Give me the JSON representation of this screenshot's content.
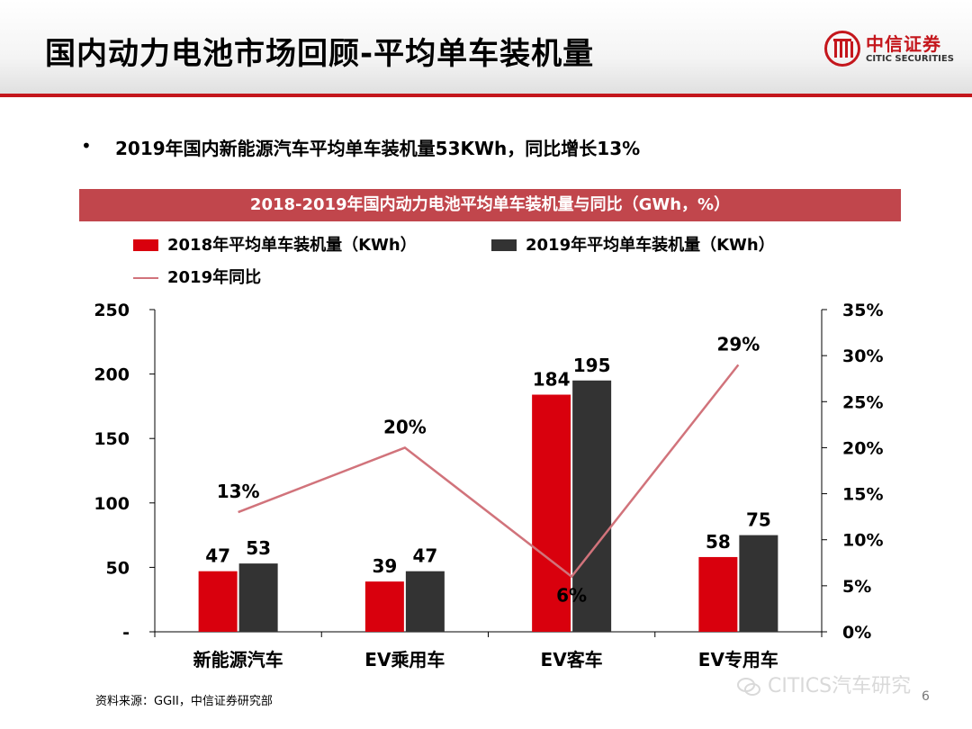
{
  "header": {
    "title": "国内动力电池市场回顾-平均单车装机量",
    "logo_text_cn": "中信证券",
    "logo_text_en": "CITIC SECURITIES"
  },
  "bullet": "2019年国内新能源汽车平均单车装机量53KWh，同比增长13%",
  "colors": {
    "brand_red": "#c4161c",
    "banner": "#c1464c",
    "series_2018": "#d9000d",
    "series_2019": "#333333",
    "yoy_line": "#d1737b"
  },
  "chart_data": {
    "type": "bar",
    "title": "2018-2019年国内动力电池平均单车装机量与同比（GWh，%）",
    "categories": [
      "新能源汽车",
      "EV乘用车",
      "EV客车",
      "EV专用车"
    ],
    "series": [
      {
        "name": "2018年平均单车装机量（KWh）",
        "type": "bar",
        "axis": "left",
        "values": [
          47,
          39,
          184,
          58
        ],
        "labels": [
          "47",
          "39",
          "184",
          "58"
        ]
      },
      {
        "name": "2019年平均单车装机量（KWh）",
        "type": "bar",
        "axis": "left",
        "values": [
          53,
          47,
          195,
          75
        ],
        "labels": [
          "53",
          "47",
          "195",
          "75"
        ]
      },
      {
        "name": "2019年同比",
        "type": "line",
        "axis": "right",
        "values": [
          13,
          20,
          6,
          29
        ],
        "labels": [
          "13%",
          "20%",
          "6%",
          "29%"
        ]
      }
    ],
    "y_left": {
      "ylim": [
        0,
        250
      ],
      "ticks": [
        0,
        50,
        100,
        150,
        200,
        250
      ],
      "tick_labels": [
        "-",
        "50",
        "100",
        "150",
        "200",
        "250"
      ]
    },
    "y_right": {
      "ylim": [
        0,
        35
      ],
      "ticks": [
        0,
        5,
        10,
        15,
        20,
        25,
        30,
        35
      ],
      "tick_labels": [
        "0%",
        "5%",
        "10%",
        "15%",
        "20%",
        "25%",
        "30%",
        "35%"
      ]
    },
    "grid": false,
    "legend_placement": "top-left"
  },
  "footer": {
    "source": "资料来源：GGII，中信证券研究部",
    "watermark": "CITICS汽车研究",
    "page_number": "6"
  }
}
